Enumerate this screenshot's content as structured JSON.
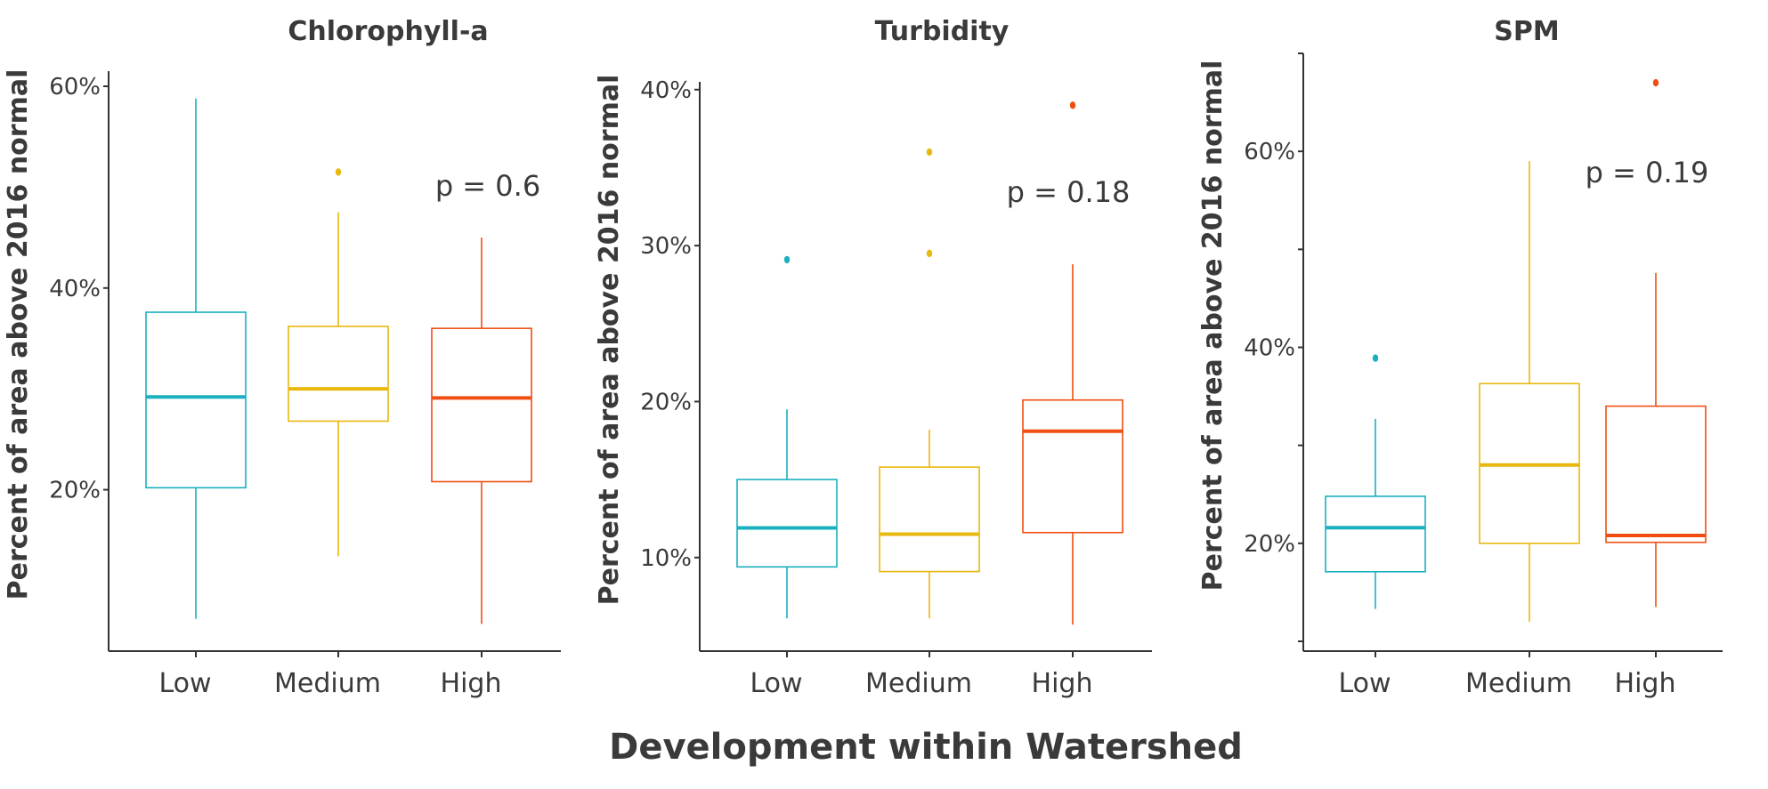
{
  "figure": {
    "xlabel": "Development within Watershed",
    "ylabel": "Percent of area above 2016 normal"
  },
  "colors": {
    "Low": "#1ab0bf",
    "Medium": "#e8b80f",
    "High": "#f04e12"
  },
  "chart_data": [
    {
      "type": "box",
      "title": "Chlorophyll-a",
      "ylabel": "Percent of area above 2016 normal",
      "xlabel": "Development within Watershed",
      "categories": [
        "Low",
        "Medium",
        "High"
      ],
      "ylim": [
        4.0,
        61.5
      ],
      "yticks": [
        20,
        40,
        60
      ],
      "ytick_labels": [
        "20%",
        "40%",
        "60%"
      ],
      "boxes": [
        {
          "category": "Low",
          "whisker_low": 7.2,
          "q1": 20.2,
          "median": 29.2,
          "q3": 37.6,
          "whisker_high": 58.8,
          "outliers": []
        },
        {
          "category": "Medium",
          "whisker_low": 13.4,
          "q1": 26.8,
          "median": 30.0,
          "q3": 36.2,
          "whisker_high": 47.5,
          "outliers": [
            51.5
          ]
        },
        {
          "category": "High",
          "whisker_low": 6.7,
          "q1": 20.8,
          "median": 29.1,
          "q3": 36.0,
          "whisker_high": 45.0,
          "outliers": []
        }
      ],
      "annotation": "p = 0.6"
    },
    {
      "type": "box",
      "title": "Turbidity",
      "ylabel": "Percent of area above 2016 normal",
      "xlabel": "Development within Watershed",
      "categories": [
        "Low",
        "Medium",
        "High"
      ],
      "ylim": [
        4.0,
        40.5
      ],
      "yticks": [
        10,
        20,
        30,
        40
      ],
      "ytick_labels": [
        "10%",
        "20%",
        "30%",
        "40%"
      ],
      "boxes": [
        {
          "category": "Low",
          "whisker_low": 6.1,
          "q1": 9.4,
          "median": 11.9,
          "q3": 15.0,
          "whisker_high": 19.5,
          "outliers": [
            29.1
          ]
        },
        {
          "category": "Medium",
          "whisker_low": 6.1,
          "q1": 9.1,
          "median": 11.5,
          "q3": 15.8,
          "whisker_high": 18.2,
          "outliers": [
            29.5,
            36.0
          ]
        },
        {
          "category": "High",
          "whisker_low": 5.7,
          "q1": 11.6,
          "median": 18.1,
          "q3": 20.1,
          "whisker_high": 28.8,
          "outliers": [
            39.0
          ]
        }
      ],
      "annotation": "p = 0.18"
    },
    {
      "type": "box",
      "title": "SPM",
      "ylabel": "Percent of area above 2016 normal",
      "xlabel": "Development within Watershed",
      "categories": [
        "Low",
        "Medium",
        "High"
      ],
      "ylim": [
        9.0,
        70.0
      ],
      "yticks": [
        20,
        40,
        60
      ],
      "ytick_labels": [
        "20%",
        "40%",
        "60%"
      ],
      "minor_yticks": [
        10,
        30,
        50,
        70
      ],
      "boxes": [
        {
          "category": "Low",
          "whisker_low": 13.3,
          "q1": 17.1,
          "median": 21.6,
          "q3": 24.8,
          "whisker_high": 32.7,
          "outliers": [
            38.9
          ]
        },
        {
          "category": "Medium",
          "whisker_low": 12.0,
          "q1": 20.0,
          "median": 28.0,
          "q3": 36.3,
          "whisker_high": 59.0,
          "outliers": []
        },
        {
          "category": "High",
          "whisker_low": 13.5,
          "q1": 20.1,
          "median": 20.8,
          "q3": 34.0,
          "whisker_high": 47.6,
          "outliers": [
            67.0
          ]
        }
      ],
      "annotation": "p = 0.19"
    }
  ]
}
